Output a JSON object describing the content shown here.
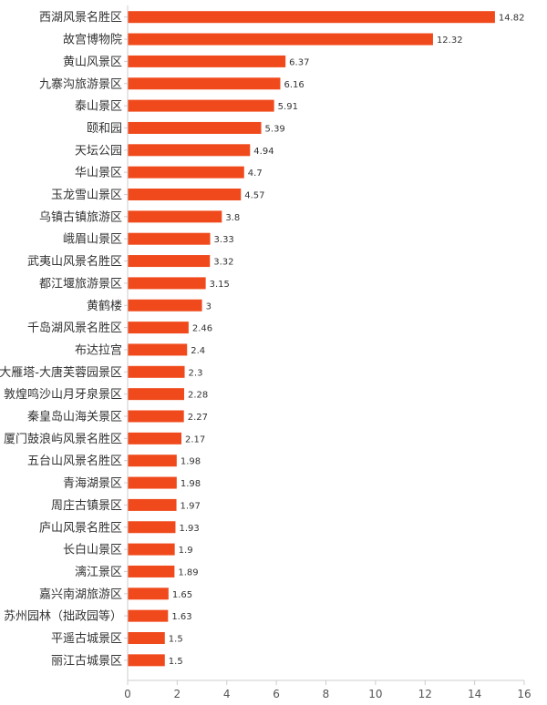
{
  "chart_data": {
    "type": "bar",
    "orientation": "horizontal",
    "title": "",
    "xlabel": "",
    "ylabel": "",
    "xlim": [
      0,
      16
    ],
    "x_ticks": [
      0,
      2,
      4,
      6,
      8,
      10,
      12,
      14,
      16
    ],
    "grid": false,
    "legend": "none",
    "bar_color": "#f04a1c",
    "categories": [
      "西湖风景名胜区",
      "故宫博物院",
      "黄山风景区",
      "九寨沟旅游景区",
      "泰山景区",
      "颐和园",
      "天坛公园",
      "华山景区",
      "玉龙雪山景区",
      "乌镇古镇旅游区",
      "峨眉山景区",
      "武夷山风景名胜区",
      "都江堰旅游景区",
      "黄鹤楼",
      "千岛湖风景名胜区",
      "布达拉宫",
      "大雁塔-大唐芙蓉园景区",
      "敦煌鸣沙山月牙泉景区",
      "秦皇岛山海关景区",
      "厦门鼓浪屿风景名胜区",
      "五台山风景名胜区",
      "青海湖景区",
      "周庄古镇景区",
      "庐山风景名胜区",
      "长白山景区",
      "漓江景区",
      "嘉兴南湖旅游区",
      "苏州园林（拙政园等）",
      "平遥古城景区",
      "丽江古城景区"
    ],
    "values": [
      14.82,
      12.32,
      6.37,
      6.16,
      5.91,
      5.39,
      4.94,
      4.7,
      4.57,
      3.8,
      3.33,
      3.32,
      3.15,
      3,
      2.46,
      2.4,
      2.3,
      2.28,
      2.27,
      2.17,
      1.98,
      1.98,
      1.97,
      1.93,
      1.9,
      1.89,
      1.65,
      1.63,
      1.5,
      1.5
    ]
  }
}
